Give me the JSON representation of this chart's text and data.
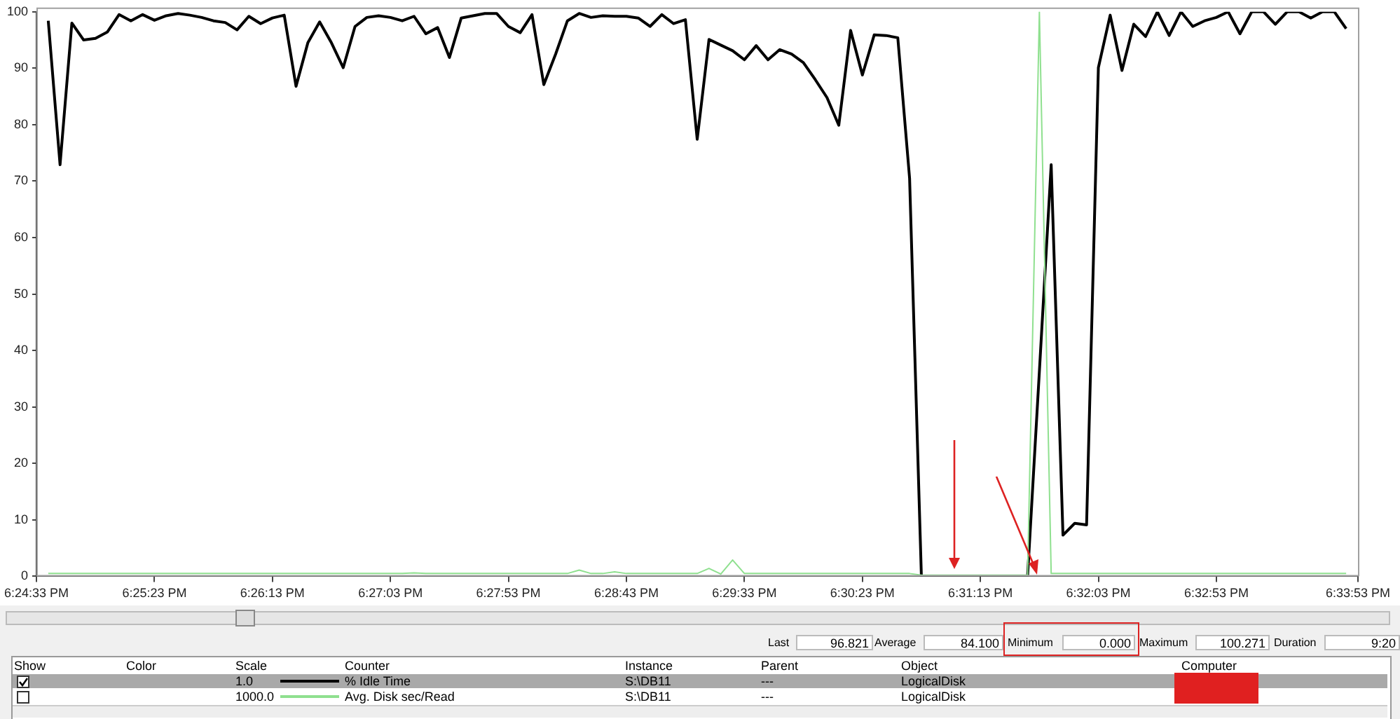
{
  "chart_data": {
    "type": "line",
    "categories": [
      "6:24:33 PM",
      null,
      null,
      null,
      null,
      null,
      null,
      null,
      null,
      null,
      "6:25:23 PM",
      null,
      null,
      null,
      null,
      null,
      null,
      null,
      null,
      null,
      "6:26:13 PM",
      null,
      null,
      null,
      null,
      null,
      null,
      null,
      null,
      null,
      "6:27:03 PM",
      null,
      null,
      null,
      null,
      null,
      null,
      null,
      null,
      null,
      "6:27:53 PM",
      null,
      null,
      null,
      null,
      null,
      null,
      null,
      null,
      null,
      "6:28:43 PM",
      null,
      null,
      null,
      null,
      null,
      null,
      null,
      null,
      null,
      "6:29:33 PM",
      null,
      null,
      null,
      null,
      null,
      null,
      null,
      null,
      null,
      "6:30:23 PM",
      null,
      null,
      null,
      null,
      null,
      null,
      null,
      null,
      null,
      "6:31:13 PM",
      null,
      null,
      null,
      null,
      null,
      null,
      null,
      null,
      null,
      "6:32:03 PM",
      null,
      null,
      null,
      null,
      null,
      null,
      null,
      null,
      null,
      "6:32:53 PM",
      null,
      null,
      null,
      null,
      null,
      null,
      null,
      null,
      null,
      null,
      null,
      "6:33:53 PM"
    ],
    "series": [
      {
        "name": "% Idle Time",
        "color": "#000000",
        "values": [
          null,
          98.4,
          72.9,
          98,
          95,
          95.3,
          96.4,
          99.5,
          98.4,
          99.5,
          98.5,
          99.3,
          99.7,
          99.4,
          99,
          98.4,
          98.1,
          96.8,
          99.2,
          97.9,
          98.9,
          99.4,
          86.8,
          94.5,
          98.2,
          94.5,
          90.1,
          97.4,
          99,
          99.3,
          99,
          98.4,
          99.2,
          96.1,
          97.2,
          91.9,
          98.9,
          99.3,
          99.7,
          99.7,
          97.4,
          96.3,
          99.5,
          87.1,
          92.5,
          98.4,
          99.7,
          99,
          99.3,
          99.2,
          99.2,
          98.9,
          97.4,
          99.5,
          97.9,
          98.6,
          77.4,
          95.1,
          94.1,
          93.1,
          91.5,
          94,
          91.5,
          93.3,
          92.5,
          91,
          88,
          84.8,
          79.9,
          96.7,
          88.8,
          95.9,
          95.8,
          95.4,
          70.5,
          0,
          0,
          0,
          0,
          0,
          0,
          0,
          0,
          0,
          0,
          36.3,
          72.9,
          7.3,
          9.4,
          9.1,
          90.1,
          99.4,
          89.6,
          97.8,
          95.6,
          100,
          95.8,
          100,
          97.4,
          98.4,
          99,
          100,
          96.1,
          100,
          100,
          97.8,
          100,
          100,
          98.9,
          100,
          100,
          97,
          null
        ]
      },
      {
        "name": "Avg. Disk sec/Read",
        "color": "#8fe08f",
        "values": [
          null,
          0.5,
          0.5,
          0.5,
          0.5,
          0.5,
          0.5,
          0.5,
          0.5,
          0.5,
          0.5,
          0.5,
          0.5,
          0.5,
          0.5,
          0.5,
          0.5,
          0.5,
          0.5,
          0.5,
          0.5,
          0.5,
          0.5,
          0.5,
          0.5,
          0.5,
          0.5,
          0.5,
          0.5,
          0.5,
          0.5,
          0.5,
          0.6,
          0.5,
          0.5,
          0.5,
          0.5,
          0.5,
          0.5,
          0.5,
          0.5,
          0.5,
          0.5,
          0.5,
          0.5,
          0.5,
          1.1,
          0.5,
          0.5,
          0.8,
          0.5,
          0.5,
          0.5,
          0.5,
          0.5,
          0.5,
          0.5,
          1.4,
          0.4,
          2.9,
          0.5,
          0.5,
          0.5,
          0.5,
          0.5,
          0.5,
          0.5,
          0.5,
          0.5,
          0.5,
          0.5,
          0.5,
          0.5,
          0.5,
          0.5,
          0.2,
          0.2,
          0.2,
          0.2,
          0.2,
          0.2,
          0.2,
          0.2,
          0.2,
          0.2,
          100,
          0.5,
          0.5,
          0.5,
          0.5,
          0.5,
          0.5,
          0.5,
          0.5,
          0.5,
          0.5,
          0.5,
          0.5,
          0.5,
          0.5,
          0.5,
          0.5,
          0.5,
          0.5,
          0.5,
          0.5,
          0.5,
          0.5,
          0.5,
          0.5,
          0.5,
          0.5,
          null
        ]
      }
    ],
    "ylim": [
      0,
      100
    ],
    "yticks": [
      0,
      10,
      20,
      30,
      40,
      50,
      60,
      70,
      80,
      90,
      100
    ],
    "grid": false,
    "legend": "bottom",
    "marker": "none",
    "line_style": "solid",
    "annotations": [
      "Last",
      "96.821",
      "Average",
      "84.100",
      "Minimum",
      "0.000",
      "Maximum",
      "100.271",
      "Duration",
      "9:20",
      "Show",
      "Color",
      "Scale",
      "Counter",
      "Instance",
      "Parent",
      "Object",
      "Computer",
      "1.0",
      "S:\\DB11",
      "---",
      "LogicalDisk",
      "1000.0",
      "S:\\DB11",
      "---",
      "LogicalDisk"
    ]
  }
}
